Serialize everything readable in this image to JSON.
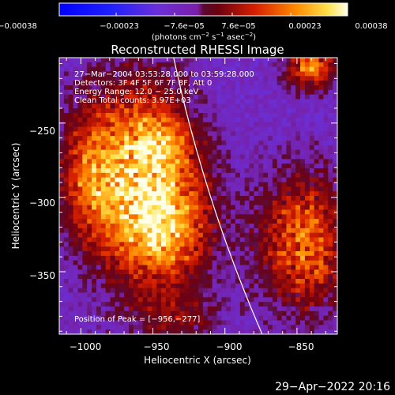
{
  "chart_data": {
    "type": "heatmap",
    "title": "Reconstructed RHESSI Image",
    "xlabel": "Heliocentric X (arcsec)",
    "ylabel": "Heliocentric Y (arcsec)",
    "xlim": [
      -1015,
      -822
    ],
    "ylim": [
      -392,
      -206
    ],
    "xticks": [
      -1000,
      -950,
      -900,
      -850
    ],
    "yticks": [
      -250,
      -300,
      -350
    ],
    "xtick_labels": [
      "−1000",
      "−950",
      "−900",
      "−850"
    ],
    "ytick_labels": [
      "−250",
      "−300",
      "−350"
    ],
    "colorbar": {
      "range": [
        -0.00038,
        0.00038
      ],
      "ticks": [
        -0.00038,
        -0.00023,
        -7.6e-05,
        7.6e-05,
        0.00023,
        0.00038
      ],
      "tick_labels": [
        "−0.00038",
        "−0.00023",
        "−7.6e−05",
        "7.6e−05",
        "0.00023",
        "0.00038"
      ],
      "unit_main": "(photons cm",
      "unit_sup1": "−2",
      "unit_mid": " s",
      "unit_sup2": "−1",
      "unit_mid2": " asec",
      "unit_sup3": "−2",
      "unit_end": ")"
    },
    "annotations": [
      "27−Mar−2004 03:53:28.000 to 03:59:28.000",
      "Detectors: 3F 4F 5F 6F 7F 8F, Att 0",
      "Energy Range: 12.0 − 25.0 keV",
      "Clean    Total counts: 3.97E+03"
    ],
    "peak_label": "Position of Peak = [−956,−277]",
    "peak": [
      -956,
      -277
    ],
    "colors": {
      "background": "#000000",
      "limb": "#ffffff",
      "text": "#ffffff"
    },
    "emission_regions": [
      {
        "x": -960,
        "y": -285,
        "sx": 28,
        "sy": 45,
        "amp": 0.00034
      },
      {
        "x": -940,
        "y": -320,
        "sx": 22,
        "sy": 26,
        "amp": 0.00024
      },
      {
        "x": -995,
        "y": -285,
        "sx": 14,
        "sy": 30,
        "amp": 0.00016
      },
      {
        "x": -845,
        "y": -330,
        "sx": 22,
        "sy": 32,
        "amp": 0.00028
      },
      {
        "x": -840,
        "y": -213,
        "sx": 12,
        "sy": 10,
        "amp": 0.0003
      },
      {
        "x": -935,
        "y": -380,
        "sx": 22,
        "sy": 12,
        "amp": 0.00012
      },
      {
        "x": -945,
        "y": -262,
        "sx": 14,
        "sy": 12,
        "amp": 0.00014
      }
    ]
  },
  "timestamp": "29−Apr−2022 20:16"
}
